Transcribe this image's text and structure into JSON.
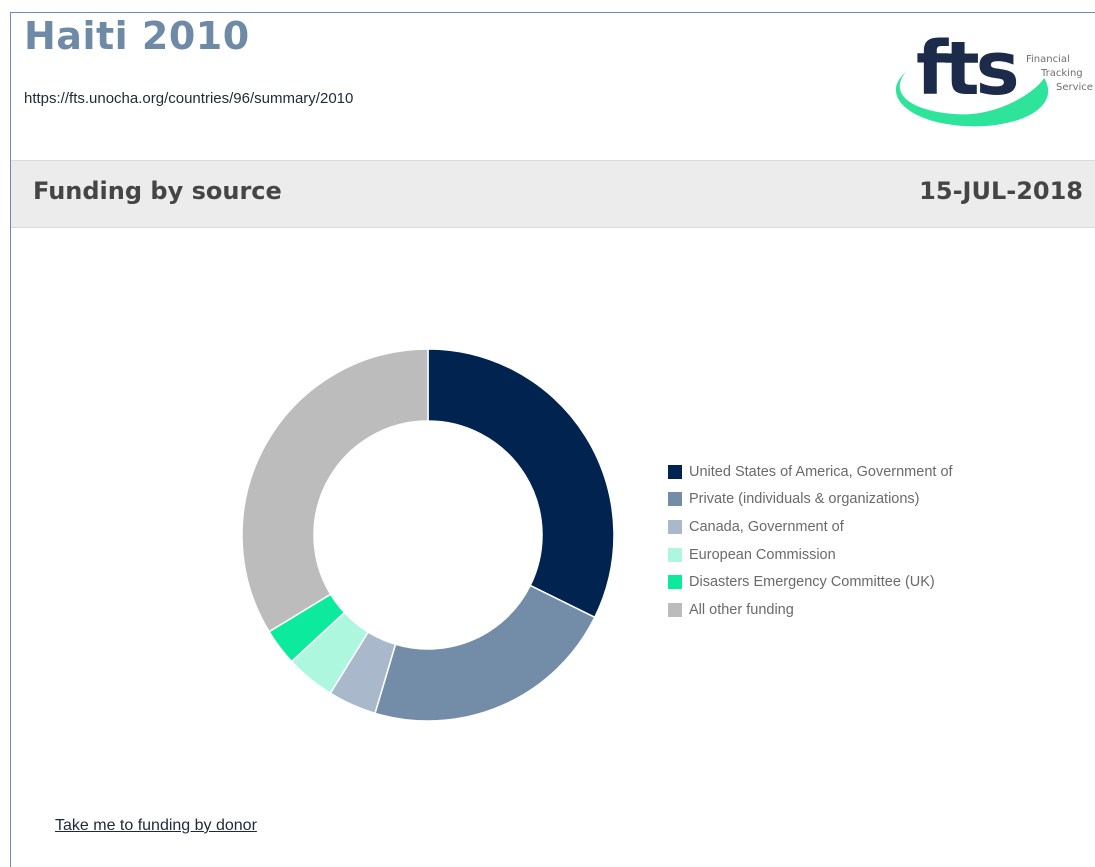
{
  "page": {
    "title": "Haiti 2010",
    "url": "https://fts.unocha.org/countries/96/summary/2010"
  },
  "logo": {
    "mark": "fts",
    "line1": "Financial",
    "line2": "Tracking",
    "line3": "Service",
    "colors": {
      "mark": "#1c2b4a",
      "swoosh": "#2ee39a"
    }
  },
  "section": {
    "title": "Funding by source",
    "date": "15-JUL-2018"
  },
  "chart_data": {
    "type": "pie",
    "variant": "donut",
    "title": "",
    "legend_position": "right",
    "series": [
      {
        "name": "United States of America, Government of",
        "value": 32.3,
        "color": "#00234f"
      },
      {
        "name": "Private (individuals & organizations)",
        "value": 22.3,
        "color": "#738da9"
      },
      {
        "name": "Canada, Government of",
        "value": 4.2,
        "color": "#a9b9cb"
      },
      {
        "name": "European Commission",
        "value": 4.3,
        "color": "#aef7df"
      },
      {
        "name": "Disasters Emergency Committee (UK)",
        "value": 3.2,
        "color": "#0ceb9d"
      },
      {
        "name": "All other funding",
        "value": 33.7,
        "color": "#bcbcbc"
      }
    ]
  },
  "links": {
    "donor": "Take me to funding by donor"
  }
}
